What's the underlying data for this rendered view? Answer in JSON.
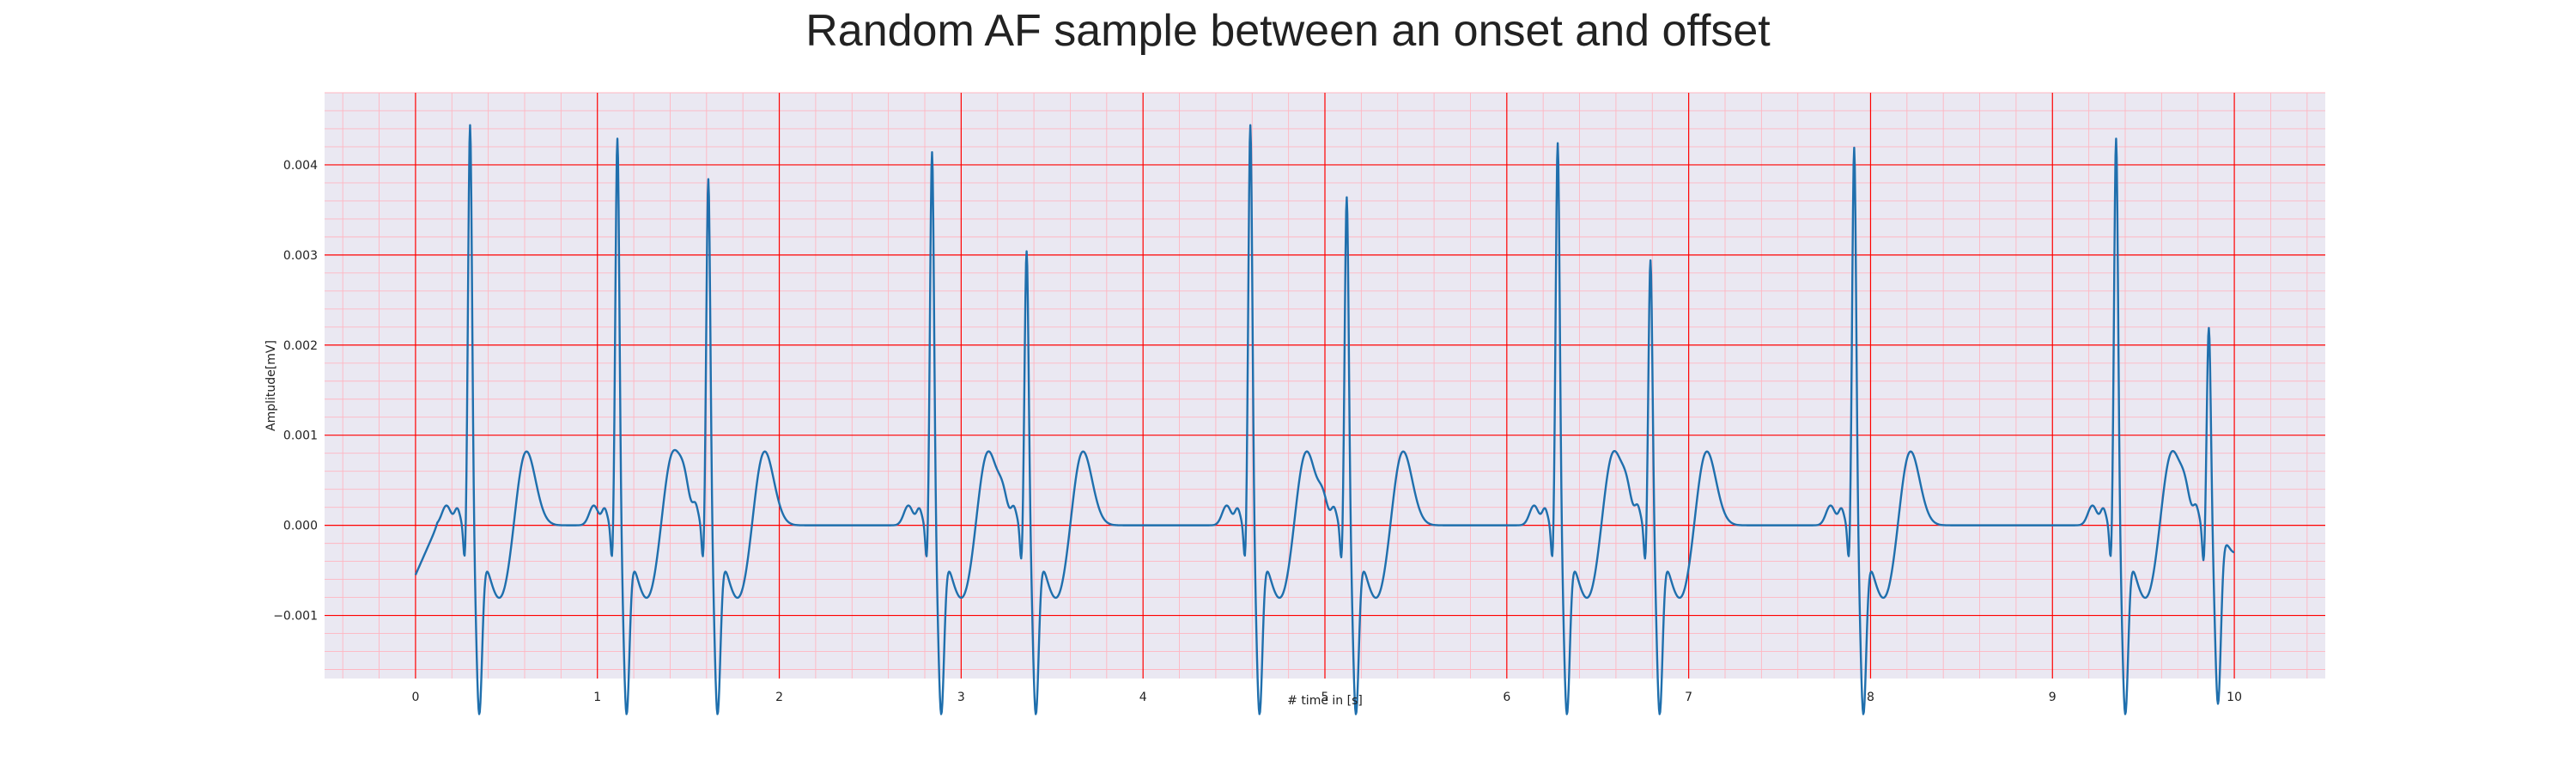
{
  "chart_data": {
    "type": "line",
    "title": "Random AF sample between an onset and offset",
    "xlabel": "# time in [s]",
    "ylabel": "Amplitude[mV]",
    "xlim": [
      -0.5,
      10.5
    ],
    "ylim": [
      -0.0017,
      0.0048
    ],
    "xticks": [
      0,
      1,
      2,
      3,
      4,
      5,
      6,
      7,
      8,
      9,
      10
    ],
    "yticks": [
      -0.001,
      0.0,
      0.001,
      0.002,
      0.003,
      0.004
    ],
    "ytick_labels": [
      "−0.001",
      "0.000",
      "0.001",
      "0.002",
      "0.003",
      "0.004"
    ],
    "grid": {
      "major": true,
      "minor": true,
      "major_color": "#ff0000",
      "minor_color": "#ffb6c1"
    },
    "background": "#eae8f2",
    "line_color": "#1f6fad",
    "series": [
      {
        "r_peaks": [
          0.3,
          1.11,
          1.61,
          2.84,
          3.36,
          4.59,
          5.12,
          6.28,
          6.79,
          7.91,
          9.35,
          9.86
        ],
        "r_amplitudes": [
          0.0045,
          0.00435,
          0.0039,
          0.0042,
          0.0031,
          0.0045,
          0.0037,
          0.0043,
          0.003,
          0.00425,
          0.00435,
          0.00225
        ],
        "x_range": [
          0.0,
          10.0
        ],
        "start_value": -0.00055,
        "end_value": -0.0003
      }
    ]
  }
}
